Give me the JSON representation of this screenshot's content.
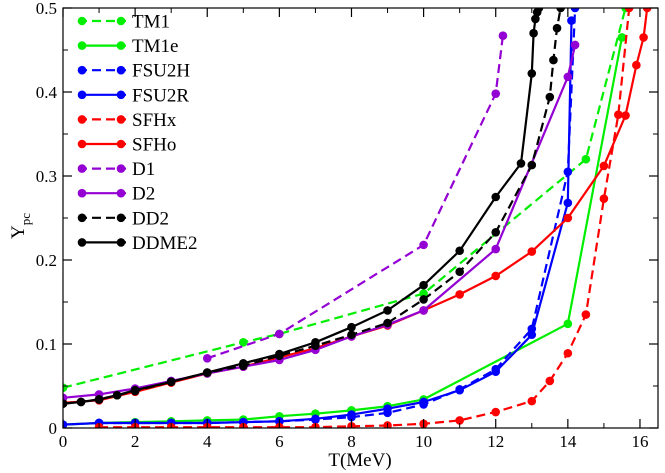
{
  "chart_data": {
    "type": "line",
    "title": "",
    "xlabel": "T(MeV)",
    "ylabel_main": "Y",
    "ylabel_sub": "pc",
    "xlim": [
      0,
      16.5
    ],
    "ylim": [
      0,
      0.5
    ],
    "xticks": [
      "0",
      "2",
      "4",
      "6",
      "8",
      "10",
      "12",
      "14",
      "16"
    ],
    "yticks": [
      "0",
      "0.1",
      "0.2",
      "0.3",
      "0.4",
      "0.5"
    ],
    "legend_position": "top-left",
    "series": [
      {
        "name": "TM1",
        "color": "#00ee00",
        "dashed": true,
        "x": [
          0,
          5,
          6,
          10,
          14.5,
          15.6
        ],
        "y": [
          0.048,
          0.102,
          0.112,
          0.16,
          0.32,
          0.5
        ]
      },
      {
        "name": "TM1e",
        "color": "#00ee00",
        "dashed": false,
        "x": [
          0,
          1,
          2,
          3,
          4,
          5,
          6,
          7,
          8,
          9,
          10,
          14,
          15.5
        ],
        "y": [
          0.004,
          0.006,
          0.007,
          0.008,
          0.009,
          0.01,
          0.014,
          0.017,
          0.021,
          0.026,
          0.034,
          0.124,
          0.465
        ]
      },
      {
        "name": "FSU2H",
        "color": "#0000ff",
        "dashed": true,
        "x": [
          1,
          2,
          3,
          4,
          5,
          6,
          7,
          8,
          9,
          10,
          11,
          12,
          13,
          14,
          14.2
        ],
        "y": [
          0.006,
          0.006,
          0.006,
          0.006,
          0.007,
          0.008,
          0.01,
          0.013,
          0.018,
          0.028,
          0.046,
          0.07,
          0.118,
          0.305,
          0.5
        ]
      },
      {
        "name": "FSU2R",
        "color": "#0000ff",
        "dashed": false,
        "x": [
          0,
          1,
          2,
          3,
          4,
          5,
          6,
          7,
          8,
          9,
          10,
          11,
          12,
          13,
          14,
          14.1
        ],
        "y": [
          0.004,
          0.006,
          0.006,
          0.006,
          0.006,
          0.007,
          0.008,
          0.011,
          0.016,
          0.023,
          0.031,
          0.045,
          0.067,
          0.111,
          0.268,
          0.485
        ]
      },
      {
        "name": "SFHx",
        "color": "#ff0000",
        "dashed": true,
        "x": [
          1,
          2,
          3,
          4,
          5,
          6,
          7,
          8,
          9,
          10,
          11,
          12,
          13,
          13.5,
          14,
          14.5,
          15,
          15.4,
          15.7
        ],
        "y": [
          0.001,
          0.001,
          0.001,
          0.001,
          0.001,
          0.001,
          0.001,
          0.002,
          0.003,
          0.005,
          0.009,
          0.019,
          0.032,
          0.056,
          0.089,
          0.135,
          0.273,
          0.373,
          0.5
        ]
      },
      {
        "name": "SFHo",
        "color": "#ff0000",
        "dashed": false,
        "x": [
          0,
          1,
          2,
          3,
          4,
          5,
          6,
          7,
          8,
          9,
          10,
          11,
          12,
          13,
          14,
          15,
          15.6,
          15.9,
          16.1,
          16.2
        ],
        "y": [
          0.03,
          0.033,
          0.043,
          0.054,
          0.065,
          0.073,
          0.084,
          0.095,
          0.109,
          0.122,
          0.14,
          0.159,
          0.181,
          0.21,
          0.25,
          0.312,
          0.372,
          0.432,
          0.465,
          0.5
        ]
      },
      {
        "name": "D1",
        "color": "#9400d3",
        "dashed": true,
        "x": [
          4,
          6,
          10,
          12,
          12.2
        ],
        "y": [
          0.083,
          0.112,
          0.218,
          0.398,
          0.467
        ]
      },
      {
        "name": "D2",
        "color": "#9400d3",
        "dashed": false,
        "x": [
          0,
          1,
          2,
          3,
          4,
          5,
          6,
          7,
          8,
          9,
          10,
          12,
          14,
          14.2
        ],
        "y": [
          0.036,
          0.04,
          0.047,
          0.056,
          0.065,
          0.073,
          0.081,
          0.093,
          0.109,
          0.123,
          0.14,
          0.213,
          0.418,
          0.456
        ]
      },
      {
        "name": "DD2",
        "color": "#000000",
        "dashed": true,
        "x": [
          0,
          0.5,
          1,
          1.5,
          2,
          3,
          4,
          5,
          6,
          7,
          8,
          9,
          10,
          11,
          12,
          13,
          13.5,
          13.6,
          13.7,
          13.8
        ],
        "y": [
          0.029,
          0.031,
          0.034,
          0.039,
          0.044,
          0.055,
          0.066,
          0.074,
          0.086,
          0.098,
          0.111,
          0.125,
          0.153,
          0.186,
          0.233,
          0.313,
          0.394,
          0.438,
          0.476,
          0.5
        ]
      },
      {
        "name": "DDME2",
        "color": "#000000",
        "dashed": false,
        "x": [
          0,
          0.5,
          1,
          1.5,
          2,
          3,
          4,
          5,
          6,
          7,
          8,
          9,
          10,
          11,
          12,
          12.7,
          13,
          13.05,
          13.1,
          13.15,
          13.2
        ],
        "y": [
          0.029,
          0.031,
          0.034,
          0.039,
          0.045,
          0.055,
          0.066,
          0.077,
          0.088,
          0.102,
          0.12,
          0.14,
          0.17,
          0.211,
          0.275,
          0.315,
          0.422,
          0.47,
          0.487,
          0.495,
          0.5
        ]
      }
    ]
  }
}
